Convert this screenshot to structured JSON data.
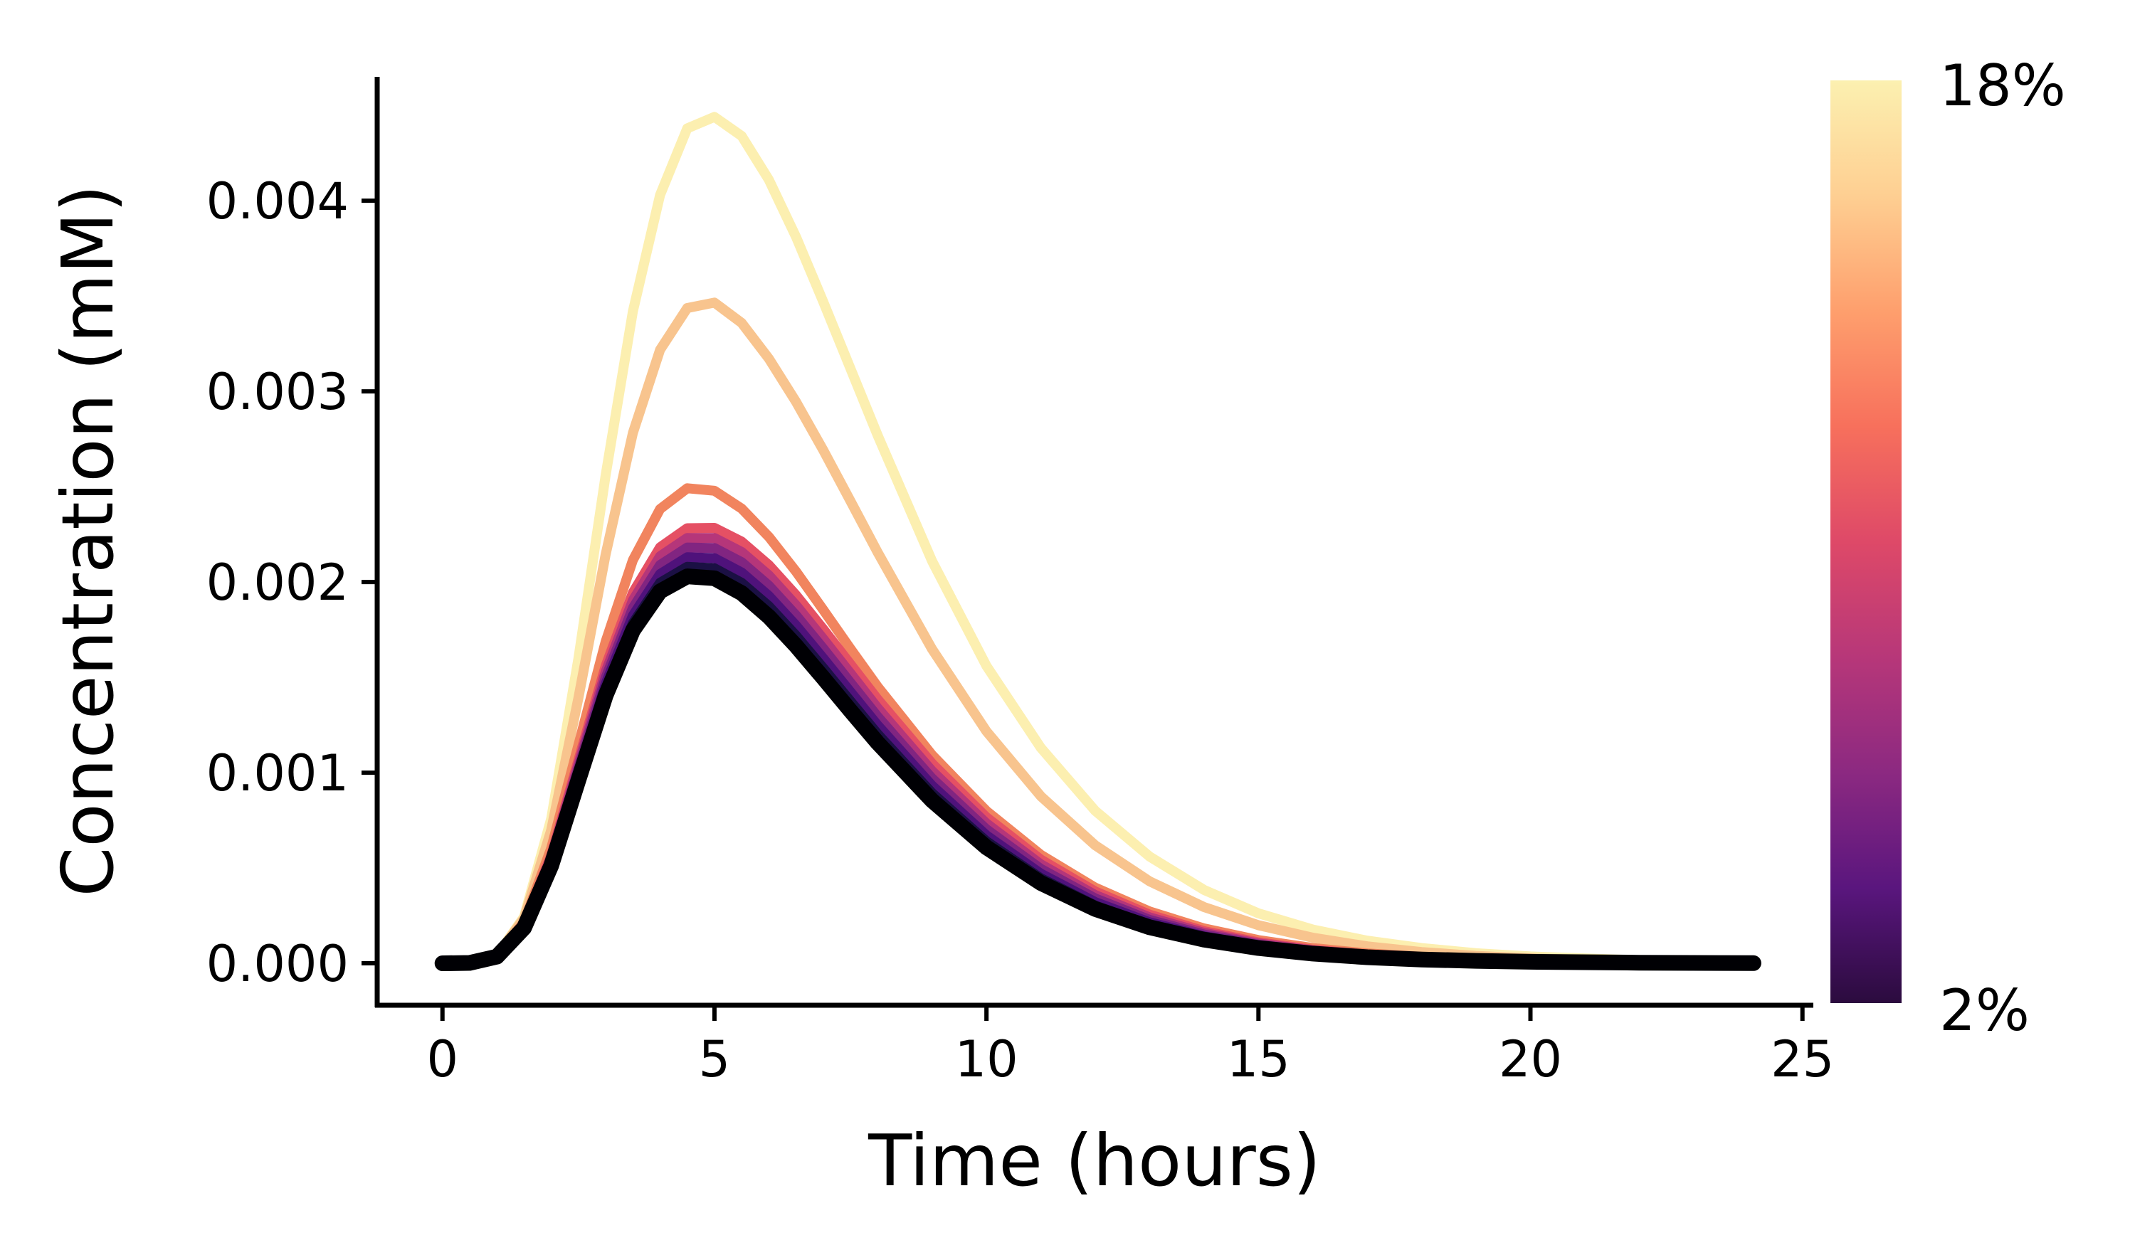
{
  "chart_data": {
    "type": "line",
    "title": "",
    "xlabel": "Time (hours)",
    "ylabel": "Concentration (mM)",
    "xlim": [
      -1.2,
      25.2
    ],
    "ylim": [
      -0.00022,
      0.00465
    ],
    "xticks": [
      0,
      5,
      10,
      15,
      20,
      25
    ],
    "xtick_labels": [
      "0",
      "5",
      "10",
      "15",
      "20",
      "25"
    ],
    "yticks": [
      0.0,
      0.001,
      0.002,
      0.003,
      0.004
    ],
    "ytick_labels": [
      "0.000",
      "0.001",
      "0.002",
      "0.003",
      "0.004"
    ],
    "grid": false,
    "x": [
      0,
      0.5,
      1,
      1.5,
      2,
      2.5,
      3,
      3.5,
      4,
      4.5,
      5,
      5.5,
      6,
      6.5,
      7,
      7.5,
      8,
      9,
      10,
      11,
      12,
      13,
      14,
      15,
      16,
      17,
      18,
      19,
      20,
      22,
      24.1
    ],
    "series": [
      {
        "color": "#000004",
        "values": [
          0,
          2e-06,
          3.5e-05,
          0.000186,
          0.000513,
          0.000962,
          0.001405,
          0.001746,
          0.001951,
          0.00203,
          0.00202,
          0.001942,
          0.001818,
          0.001665,
          0.001497,
          0.001325,
          0.001157,
          0.000854,
          0.000608,
          0.000421,
          0.000285,
          0.000189,
          0.000124,
          8e-05,
          5.1e-05,
          3.2e-05,
          2e-05,
          1.3e-05,
          8e-06,
          3e-06,
          1e-06
        ]
      },
      {
        "color": "#1b1044",
        "values": [
          0,
          2e-06,
          3.6e-05,
          0.00019,
          0.000524,
          0.000982,
          0.001435,
          0.001784,
          0.001996,
          0.00208,
          0.002072,
          0.001996,
          0.001873,
          0.001719,
          0.001549,
          0.001375,
          0.001203,
          0.000893,
          0.00064,
          0.000446,
          0.000303,
          0.000202,
          0.000133,
          8.6e-05,
          5.5e-05,
          3.5e-05,
          2.2e-05,
          1.4e-05,
          9e-06,
          3e-06,
          1e-06
        ]
      },
      {
        "color": "#4f127b",
        "values": [
          0,
          2e-06,
          3.7e-05,
          0.000194,
          0.000535,
          0.001003,
          0.001466,
          0.001824,
          0.002042,
          0.00213,
          0.002125,
          0.00205,
          0.001927,
          0.001772,
          0.0016,
          0.001424,
          0.001249,
          0.000932,
          0.000671,
          0.00047,
          0.000321,
          0.000215,
          0.000142,
          9.2e-05,
          5.9e-05,
          3.8e-05,
          2.4e-05,
          1.5e-05,
          9e-06,
          4e-06,
          1e-06
        ]
      },
      {
        "color": "#812581",
        "values": [
          0,
          2e-06,
          3.8e-05,
          0.000198,
          0.000545,
          0.001023,
          0.001497,
          0.001864,
          0.002089,
          0.002181,
          0.002178,
          0.002104,
          0.001981,
          0.001825,
          0.001651,
          0.001472,
          0.001294,
          0.00097,
          0.000703,
          0.000495,
          0.00034,
          0.000228,
          0.000151,
          9.8e-05,
          6.3e-05,
          4e-05,
          2.5e-05,
          1.6e-05,
          1e-05,
          4e-06,
          1e-06
        ]
      },
      {
        "color": "#b5367a",
        "values": [
          0,
          2e-06,
          3.9e-05,
          0.000202,
          0.000556,
          0.001044,
          0.001528,
          0.001904,
          0.002135,
          0.002231,
          0.002231,
          0.002158,
          0.002035,
          0.001878,
          0.001702,
          0.001521,
          0.001339,
          0.001009,
          0.000734,
          0.000519,
          0.000358,
          0.000241,
          0.00016,
          0.000104,
          6.7e-05,
          4.3e-05,
          2.7e-05,
          1.7e-05,
          1.1e-05,
          4e-06,
          1e-06
        ]
      },
      {
        "color": "#e55064",
        "values": [
          0,
          2e-06,
          4e-05,
          0.000206,
          0.000567,
          0.001065,
          0.001559,
          0.001944,
          0.002182,
          0.002282,
          0.002284,
          0.002212,
          0.002089,
          0.001931,
          0.001753,
          0.001569,
          0.001385,
          0.001048,
          0.000766,
          0.000544,
          0.000377,
          0.000255,
          0.000169,
          0.00011,
          7.1e-05,
          4.6e-05,
          2.9e-05,
          1.8e-05,
          1.1e-05,
          4e-06,
          2e-06
        ]
      },
      {
        "color": "#f1845e",
        "values": [
          0,
          2e-06,
          4e-05,
          0.000216,
          0.000604,
          0.001145,
          0.001687,
          0.002115,
          0.002383,
          0.002492,
          0.002479,
          0.002385,
          0.002237,
          0.002055,
          0.001854,
          0.00165,
          0.001451,
          0.001093,
          0.000799,
          0.000569,
          0.000397,
          0.000272,
          0.000183,
          0.000122,
          8e-05,
          5.2e-05,
          3.4e-05,
          2.2e-05,
          1.4e-05,
          5e-06,
          2e-06
        ]
      },
      {
        "color": "#f8c48e",
        "values": [
          0,
          2e-06,
          4e-05,
          0.000236,
          0.0007,
          0.001393,
          0.002144,
          0.002782,
          0.003218,
          0.003437,
          0.003466,
          0.003359,
          0.003172,
          0.002945,
          0.002692,
          0.002425,
          0.002156,
          0.001648,
          0.001217,
          0.000876,
          0.000619,
          0.00043,
          0.000295,
          0.0002,
          0.000134,
          8.9e-05,
          5.9e-05,
          3.9e-05,
          2.6e-05,
          1.1e-05,
          4e-06
        ]
      },
      {
        "color": "#fcefb0",
        "values": [
          0,
          2e-06,
          4e-05,
          0.000244,
          0.00076,
          0.0016,
          0.00256,
          0.00342,
          0.00403,
          0.00438,
          0.00444,
          0.00434,
          0.00411,
          0.00381,
          0.00347,
          0.00312,
          0.00277,
          0.00211,
          0.00156,
          0.00113,
          0.0008,
          0.00056,
          0.000385,
          0.000262,
          0.000177,
          0.000119,
          8e-05,
          5.3e-05,
          3.6e-05,
          1.6e-05,
          7e-06
        ]
      }
    ],
    "colorbar": {
      "min_label": "2%",
      "max_label": "18%",
      "colormap": "magma",
      "stops": [
        "#2b0b3e",
        "#5a167e",
        "#8c2981",
        "#b73779",
        "#de4968",
        "#f7705c",
        "#fe9f6d",
        "#fecf92",
        "#fcf0b0"
      ]
    }
  }
}
